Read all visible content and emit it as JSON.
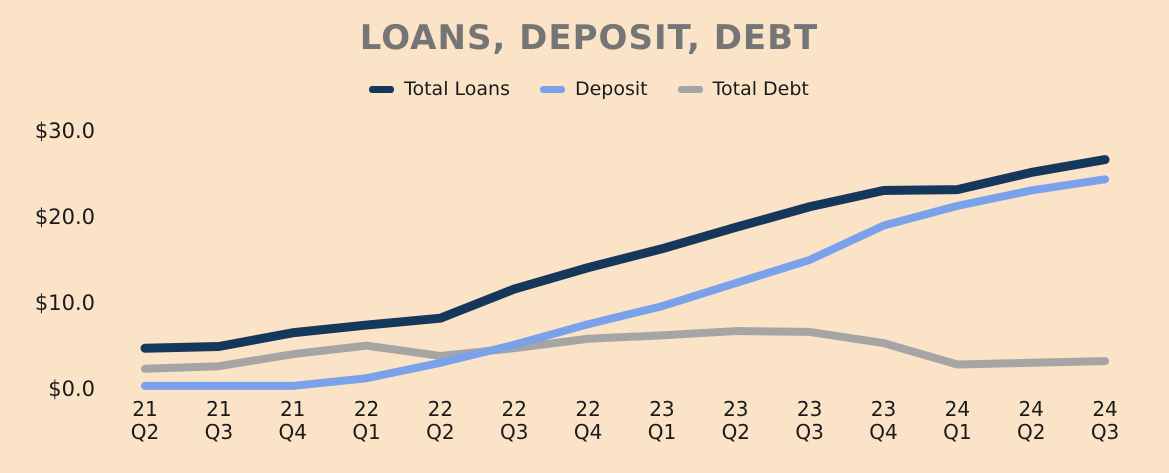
{
  "chart_data": {
    "type": "line",
    "title": "LOANS, DEPOSIT, DEBT",
    "categories": [
      "21 Q2",
      "21 Q3",
      "21 Q4",
      "22 Q1",
      "22 Q2",
      "22 Q3",
      "22 Q4",
      "23 Q1",
      "23 Q2",
      "23 Q3",
      "23 Q4",
      "24 Q1",
      "24 Q2",
      "24 Q3"
    ],
    "series": [
      {
        "name": "Total Loans",
        "color": "#16375C",
        "values": [
          4.7,
          4.9,
          6.5,
          7.4,
          8.2,
          11.6,
          14.1,
          16.3,
          18.8,
          21.2,
          23.1,
          23.2,
          25.2,
          26.7
        ]
      },
      {
        "name": "Deposit",
        "color": "#7AA2EB",
        "values": [
          0.3,
          0.3,
          0.3,
          1.2,
          3.0,
          5.1,
          7.5,
          9.6,
          12.3,
          15.0,
          19.0,
          21.3,
          23.1,
          24.4
        ]
      },
      {
        "name": "Total Debt",
        "color": "#A5A5A5",
        "values": [
          2.3,
          2.6,
          4.0,
          5.0,
          3.8,
          4.7,
          5.8,
          6.2,
          6.7,
          6.6,
          5.3,
          2.8,
          3.0,
          3.2
        ]
      }
    ],
    "y_ticks": [
      {
        "label": "$30.0",
        "value": 30
      },
      {
        "label": "$20.0",
        "value": 20
      },
      {
        "label": "$10.0",
        "value": 10
      },
      {
        "label": "$0.0",
        "value": 0
      }
    ],
    "ylim": [
      0,
      30
    ],
    "ylabel": "",
    "xlabel": "",
    "grid": false,
    "legend_position": "top",
    "colors": {
      "background": "#FBE3C8",
      "title_text": "#757575",
      "axis_text": "#1A1A1A"
    }
  }
}
